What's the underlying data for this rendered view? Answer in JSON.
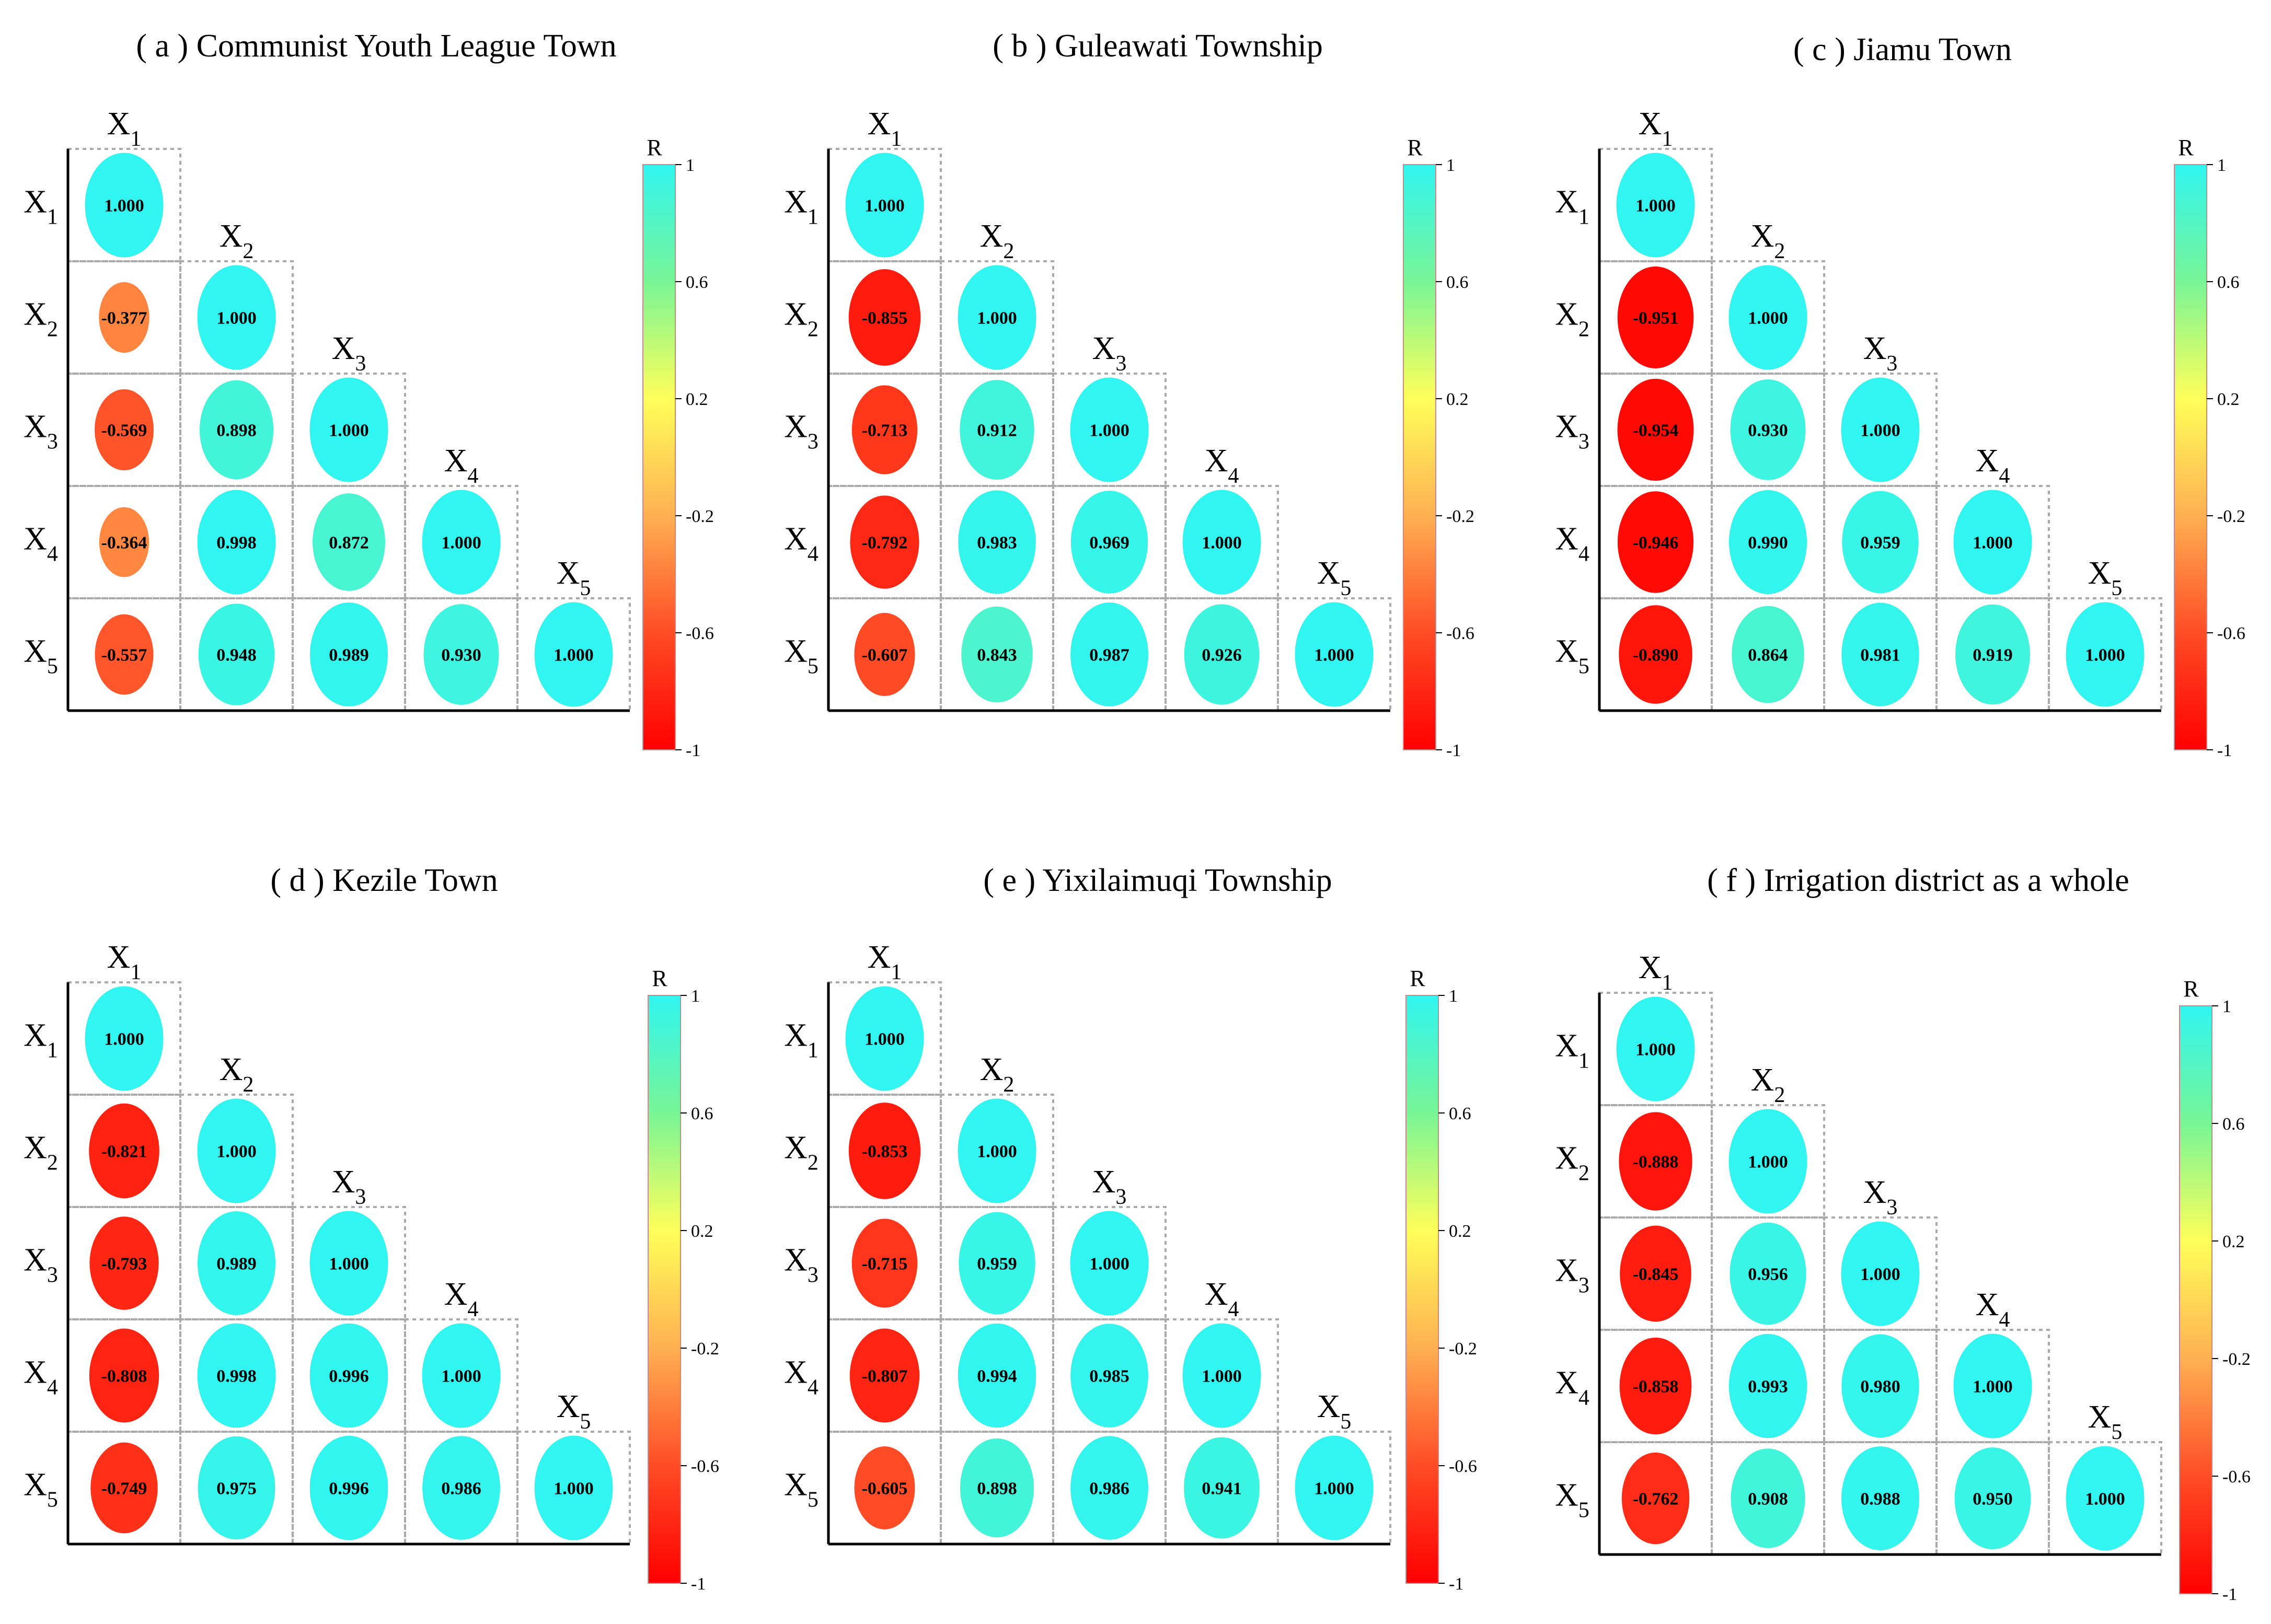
{
  "chart_data": [
    {
      "type": "heatmap",
      "title": "( a ) Communist Youth League Town",
      "variables": [
        "X1",
        "X2",
        "X3",
        "X4",
        "X5"
      ],
      "matrix": [
        [
          1.0
        ],
        [
          -0.377,
          1.0
        ],
        [
          -0.569,
          0.898,
          1.0
        ],
        [
          -0.364,
          0.998,
          0.872,
          1.0
        ],
        [
          -0.557,
          0.948,
          0.989,
          0.93,
          1.0
        ]
      ],
      "colorbar": {
        "label": "R",
        "range": [
          -1,
          1
        ],
        "ticks": [
          1,
          0.6,
          0.2,
          -0.2,
          -0.6,
          -1
        ]
      }
    },
    {
      "type": "heatmap",
      "title": "( b ) Guleawati Township",
      "variables": [
        "X1",
        "X2",
        "X3",
        "X4",
        "X5"
      ],
      "matrix": [
        [
          1.0
        ],
        [
          -0.855,
          1.0
        ],
        [
          -0.713,
          0.912,
          1.0
        ],
        [
          -0.792,
          0.983,
          0.969,
          1.0
        ],
        [
          -0.607,
          0.843,
          0.987,
          0.926,
          1.0
        ]
      ],
      "colorbar": {
        "label": "R",
        "range": [
          -1,
          1
        ],
        "ticks": [
          1,
          0.6,
          0.2,
          -0.2,
          -0.6,
          -1
        ]
      }
    },
    {
      "type": "heatmap",
      "title": "( c ) Jiamu Town",
      "variables": [
        "X1",
        "X2",
        "X3",
        "X4",
        "X5"
      ],
      "matrix": [
        [
          1.0
        ],
        [
          -0.951,
          1.0
        ],
        [
          -0.954,
          0.93,
          1.0
        ],
        [
          -0.946,
          0.99,
          0.959,
          1.0
        ],
        [
          -0.89,
          0.864,
          0.981,
          0.919,
          1.0
        ]
      ],
      "colorbar": {
        "label": "R",
        "range": [
          -1,
          1
        ],
        "ticks": [
          1,
          0.6,
          0.2,
          -0.2,
          -0.6,
          -1
        ]
      }
    },
    {
      "type": "heatmap",
      "title": "( d ) Kezile Town",
      "variables": [
        "X1",
        "X2",
        "X3",
        "X4",
        "X5"
      ],
      "matrix": [
        [
          1.0
        ],
        [
          -0.821,
          1.0
        ],
        [
          -0.793,
          0.989,
          1.0
        ],
        [
          -0.808,
          0.998,
          0.996,
          1.0
        ],
        [
          -0.749,
          0.975,
          0.996,
          0.986,
          1.0
        ]
      ],
      "colorbar": {
        "label": "R",
        "range": [
          -1,
          1
        ],
        "ticks": [
          1,
          0.6,
          0.2,
          -0.2,
          -0.6,
          -1
        ]
      }
    },
    {
      "type": "heatmap",
      "title": "( e ) Yixilaimuqi Township",
      "variables": [
        "X1",
        "X2",
        "X3",
        "X4",
        "X5"
      ],
      "matrix": [
        [
          1.0
        ],
        [
          -0.853,
          1.0
        ],
        [
          -0.715,
          0.959,
          1.0
        ],
        [
          -0.807,
          0.994,
          0.985,
          1.0
        ],
        [
          -0.605,
          0.898,
          0.986,
          0.941,
          1.0
        ]
      ],
      "colorbar": {
        "label": "R",
        "range": [
          -1,
          1
        ],
        "ticks": [
          1,
          0.6,
          0.2,
          -0.2,
          -0.6,
          -1
        ]
      }
    },
    {
      "type": "heatmap",
      "title": "( f ) Irrigation district as a whole",
      "variables": [
        "X1",
        "X2",
        "X3",
        "X4",
        "X5"
      ],
      "matrix": [
        [
          1.0
        ],
        [
          -0.888,
          1.0
        ],
        [
          -0.845,
          0.956,
          1.0
        ],
        [
          -0.858,
          0.993,
          0.98,
          1.0
        ],
        [
          -0.762,
          0.908,
          0.988,
          0.95,
          1.0
        ]
      ],
      "colorbar": {
        "label": "R",
        "range": [
          -1,
          1
        ],
        "ticks": [
          1,
          0.6,
          0.2,
          -0.2,
          -0.6,
          -1
        ]
      }
    }
  ]
}
